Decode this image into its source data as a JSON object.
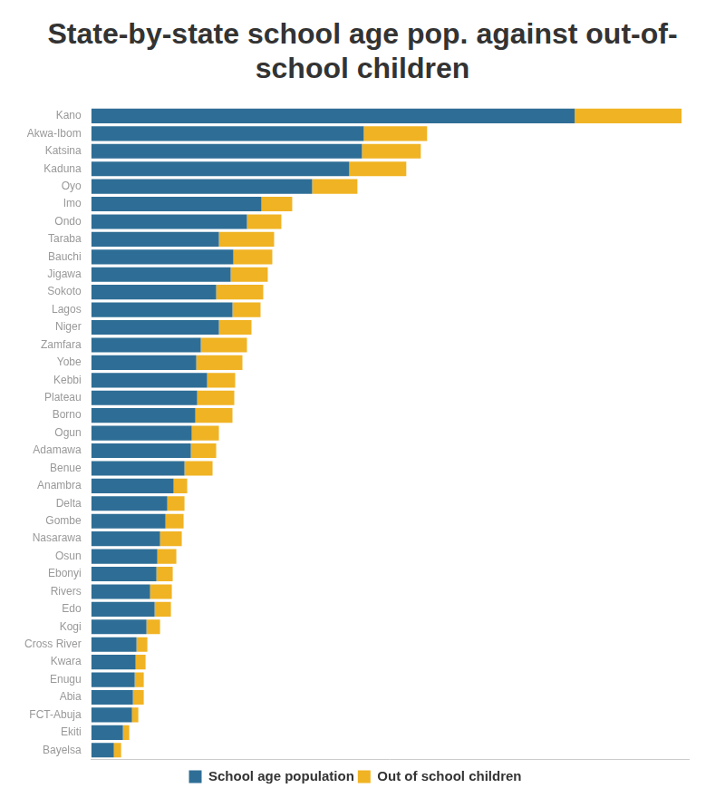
{
  "chart_data": {
    "type": "bar",
    "orientation": "horizontal",
    "stacked": true,
    "title": "State-by-state school age pop. against out-of-school children",
    "categories": [
      "Kano",
      "Akwa-Ibom",
      "Katsina",
      "Kaduna",
      "Oyo",
      "Imo",
      "Ondo",
      "Taraba",
      "Bauchi",
      "Jigawa",
      "Sokoto",
      "Lagos",
      "Niger",
      "Zamfara",
      "Yobe",
      "Kebbi",
      "Plateau",
      "Borno",
      "Ogun",
      "Adamawa",
      "Benue",
      "Anambra",
      "Delta",
      "Gombe",
      "Nasarawa",
      "Osun",
      "Ebonyi",
      "Rivers",
      "Edo",
      "Kogi",
      "Cross River",
      "Kwara",
      "Enugu",
      "Abia",
      "FCT-Abuja",
      "Ekiti",
      "Bayelsa"
    ],
    "series": [
      {
        "name": "School age population",
        "color": "#2e6e96",
        "values": [
          5340000,
          3010000,
          2990000,
          2850000,
          2440000,
          1880000,
          1720000,
          1410000,
          1570000,
          1540000,
          1380000,
          1560000,
          1410000,
          1210000,
          1160000,
          1280000,
          1170000,
          1150000,
          1110000,
          1100000,
          1030000,
          910000,
          840000,
          820000,
          760000,
          730000,
          720000,
          650000,
          700000,
          610000,
          500000,
          490000,
          480000,
          460000,
          450000,
          350000,
          250000
        ]
      },
      {
        "name": "Out of school children",
        "color": "#f0b323",
        "values": [
          1180000,
          700000,
          650000,
          630000,
          500000,
          340000,
          380000,
          610000,
          430000,
          410000,
          520000,
          310000,
          360000,
          510000,
          510000,
          310000,
          410000,
          410000,
          300000,
          280000,
          310000,
          150000,
          190000,
          200000,
          240000,
          210000,
          180000,
          240000,
          180000,
          150000,
          120000,
          110000,
          100000,
          120000,
          70000,
          70000,
          80000
        ]
      }
    ],
    "xlim": [
      0,
      6600000
    ],
    "grid": false,
    "legend": "bottom",
    "tick_labels": "y"
  }
}
